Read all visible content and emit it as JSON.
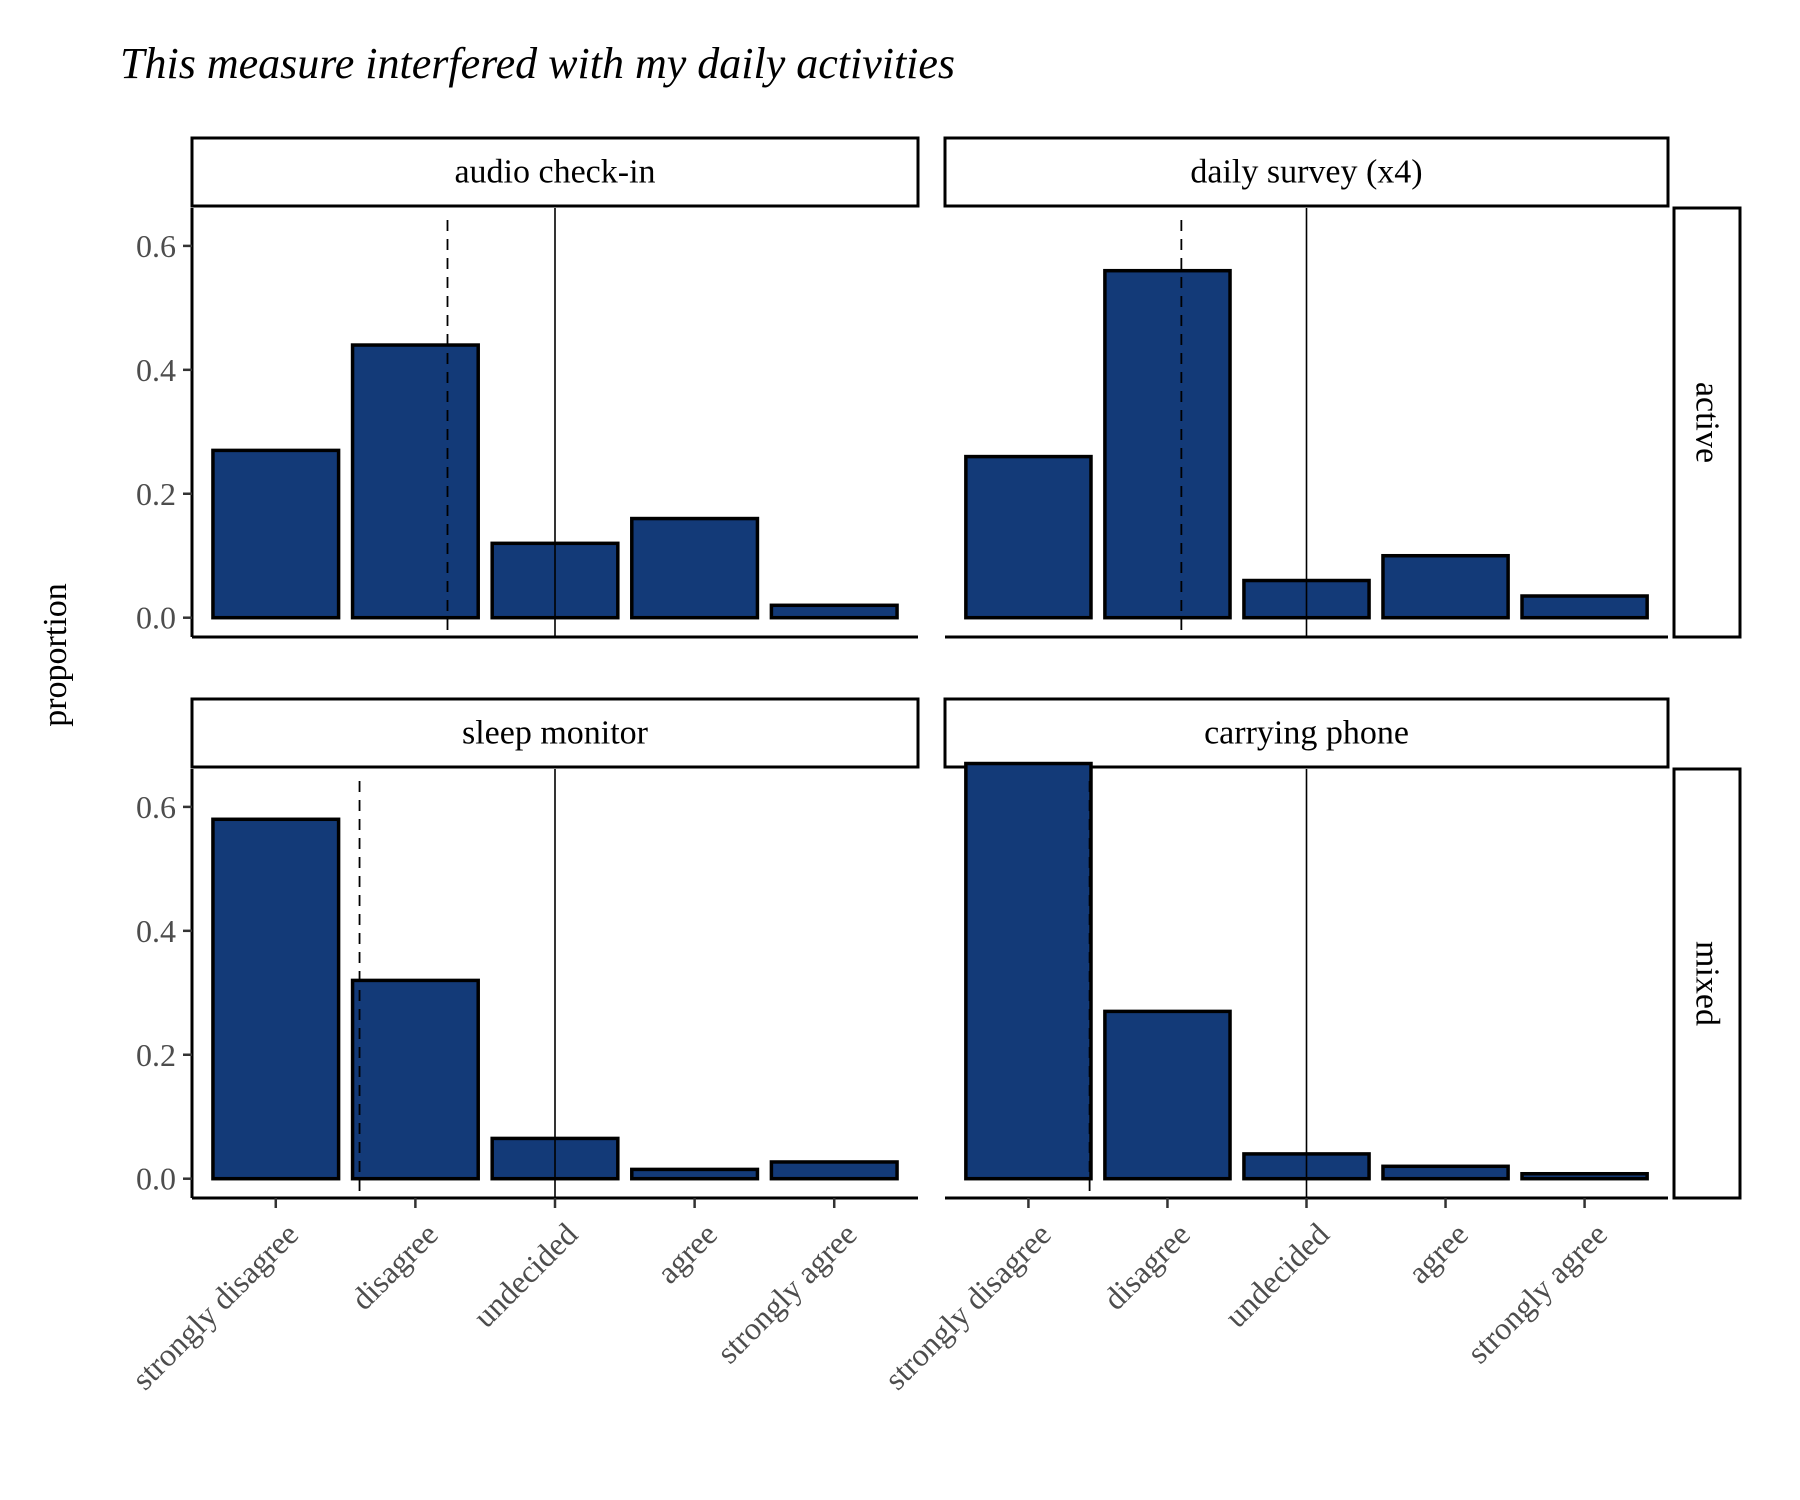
{
  "chart_data": {
    "type": "bar",
    "title": "This measure interfered with my daily activities",
    "ylabel": "proportion",
    "xlabel": "",
    "ylim": [
      0,
      0.63
    ],
    "yticks": [
      "0.0",
      "0.2",
      "0.4",
      "0.6"
    ],
    "ytick_values": [
      0,
      0.2,
      0.4,
      0.6
    ],
    "categories": [
      "strongly disagree",
      "disagree",
      "undecided",
      "agree",
      "strongly agree"
    ],
    "bar_color": "#133a78",
    "bar_outline": "#000000",
    "legend": "none",
    "grid": false,
    "rows": [
      "active",
      "mixed"
    ],
    "panels": [
      {
        "name": "audio check-in",
        "row": "active",
        "values": [
          0.27,
          0.44,
          0.12,
          0.16,
          0.02
        ],
        "dashed_line_category_position": 2.23,
        "solid_line_category_position": 3
      },
      {
        "name": "daily survey (x4)",
        "row": "active",
        "values": [
          0.26,
          0.56,
          0.06,
          0.1,
          0.035
        ],
        "dashed_line_category_position": 2.1,
        "solid_line_category_position": 3
      },
      {
        "name": "sleep monitor",
        "row": "mixed",
        "values": [
          0.58,
          0.32,
          0.065,
          0.015,
          0.027
        ],
        "dashed_line_category_position": 1.6,
        "solid_line_category_position": 3
      },
      {
        "name": "carrying phone",
        "row": "mixed",
        "values": [
          0.67,
          0.27,
          0.04,
          0.02,
          0.008
        ],
        "dashed_line_category_position": 1.44,
        "solid_line_category_position": 3
      }
    ]
  }
}
